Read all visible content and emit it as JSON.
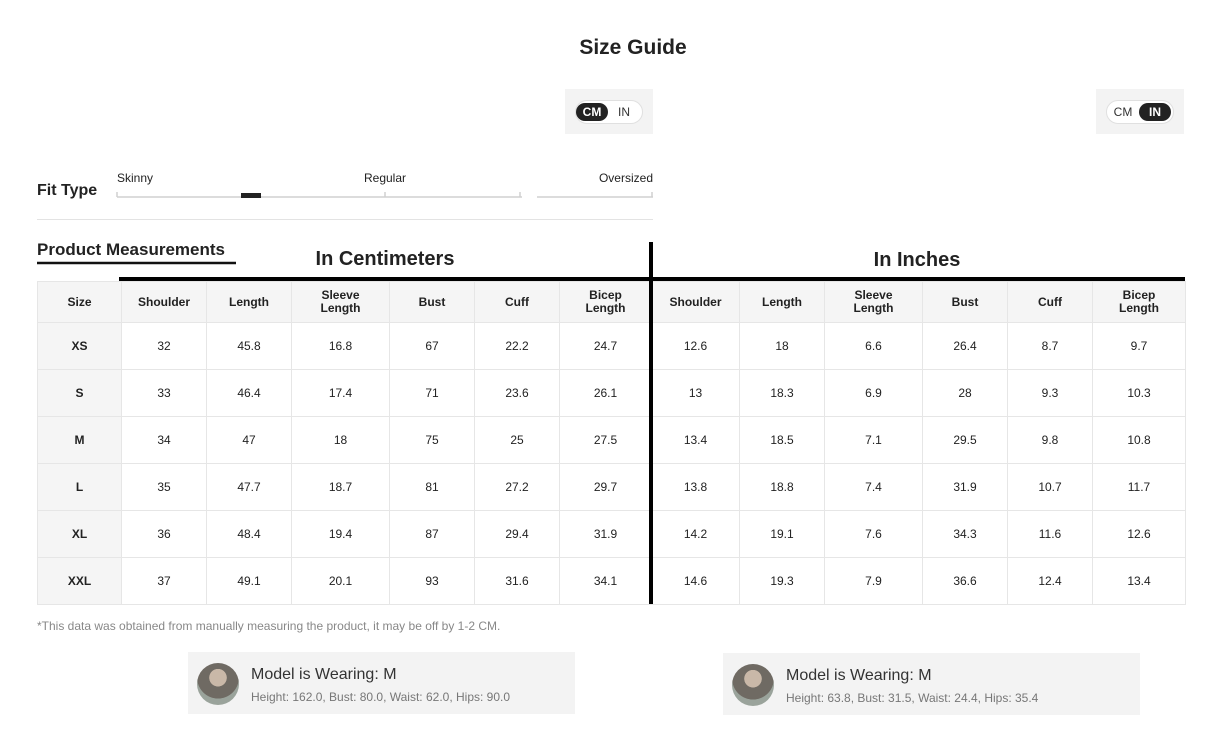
{
  "title": "Size Guide",
  "unit_toggles": [
    {
      "options": [
        "CM",
        "IN"
      ],
      "active": 0
    },
    {
      "options": [
        "CM",
        "IN"
      ],
      "active": 1
    }
  ],
  "fit_type": {
    "label": "Fit Type",
    "scale": [
      "Skinny",
      "Regular",
      "Oversized"
    ]
  },
  "section_title": "Product Measurements",
  "groups": [
    "In Centimeters",
    "In Inches"
  ],
  "table": {
    "header": [
      "Size",
      "Shoulder",
      "Length",
      "Sleeve Length",
      "Bust",
      "Cuff",
      "Bicep Length",
      "Shoulder",
      "Length",
      "Sleeve Length",
      "Bust",
      "Cuff",
      "Bicep Length"
    ],
    "rows": [
      [
        "XS",
        32,
        45.8,
        16.8,
        67,
        22.2,
        24.7,
        12.6,
        18,
        6.6,
        26.4,
        8.7,
        9.7
      ],
      [
        "S",
        33,
        46.4,
        17.4,
        71,
        23.6,
        26.1,
        13,
        18.3,
        6.9,
        28,
        9.3,
        10.3
      ],
      [
        "M",
        34,
        47,
        18,
        75,
        25,
        27.5,
        13.4,
        18.5,
        7.1,
        29.5,
        9.8,
        10.8
      ],
      [
        "L",
        35,
        47.7,
        18.7,
        81,
        27.2,
        29.7,
        13.8,
        18.8,
        7.4,
        31.9,
        10.7,
        11.7
      ],
      [
        "XL",
        36,
        48.4,
        19.4,
        87,
        29.4,
        31.9,
        14.2,
        19.1,
        7.6,
        34.3,
        11.6,
        12.6
      ],
      [
        "XXL",
        37,
        49.1,
        20.1,
        93,
        31.6,
        34.1,
        14.6,
        19.3,
        7.9,
        36.6,
        12.4,
        13.4
      ]
    ]
  },
  "note": "*This data was obtained from manually measuring the product, it may be off by 1-2 CM.",
  "models": [
    {
      "title": "Model is Wearing: M",
      "details": "Height: 162.0, Bust: 80.0, Waist: 62.0, Hips: 90.0"
    },
    {
      "title": "Model is Wearing: M",
      "details": "Height: 63.8, Bust: 31.5, Waist: 24.4, Hips: 35.4"
    }
  ]
}
